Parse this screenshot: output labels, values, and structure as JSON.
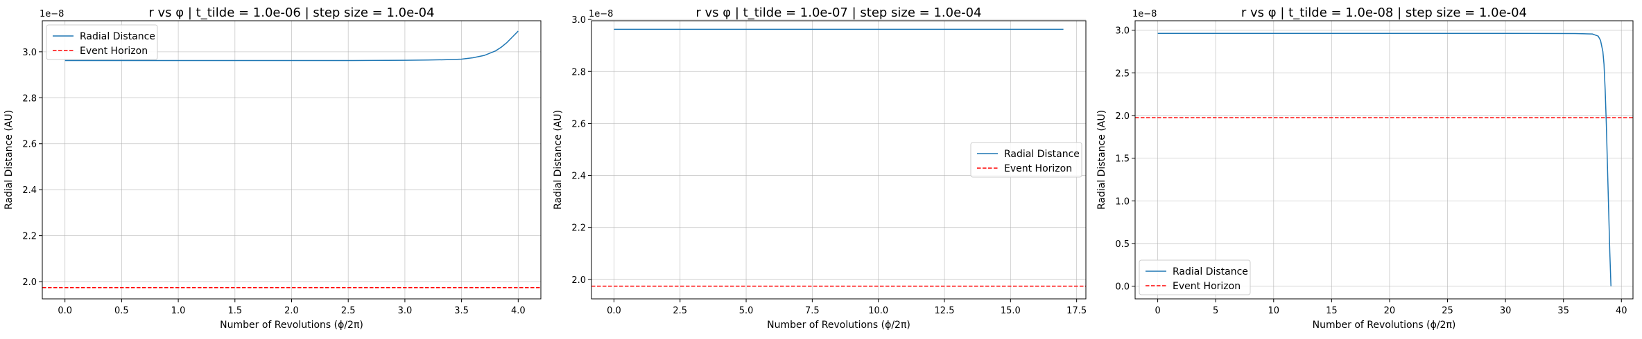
{
  "chart_data": [
    {
      "type": "line",
      "title": "r vs φ | t_tilde = 1.0e-06 | step size = 1.0e-04",
      "xlabel": "Number of Revolutions (ϕ/2π)",
      "ylabel": "Radial Distance (AU)",
      "y_offset_label": "1e−8",
      "xlim": [
        -0.2,
        4.2
      ],
      "ylim": [
        1.925,
        3.135
      ],
      "x_ticks": [
        0.0,
        0.5,
        1.0,
        1.5,
        2.0,
        2.5,
        3.0,
        3.5,
        4.0
      ],
      "x_tick_labels": [
        "0.0",
        "0.5",
        "1.0",
        "1.5",
        "2.0",
        "2.5",
        "3.0",
        "3.5",
        "4.0"
      ],
      "y_ticks": [
        2.0,
        2.2,
        2.4,
        2.6,
        2.8,
        3.0
      ],
      "y_tick_labels": [
        "2.0",
        "2.2",
        "2.4",
        "2.6",
        "2.8",
        "3.0"
      ],
      "grid": true,
      "legend_position": "upper-left",
      "series": [
        {
          "name": "Radial Distance",
          "color": "#1f77b4",
          "style": "solid",
          "x": [
            0.0,
            0.5,
            1.0,
            1.5,
            2.0,
            2.5,
            3.0,
            3.2,
            3.4,
            3.5,
            3.6,
            3.7,
            3.8,
            3.85,
            3.9,
            3.95,
            4.0
          ],
          "y": [
            2.962,
            2.962,
            2.962,
            2.962,
            2.962,
            2.962,
            2.963,
            2.964,
            2.966,
            2.968,
            2.974,
            2.984,
            3.004,
            3.02,
            3.04,
            3.065,
            3.09
          ]
        },
        {
          "name": "Event Horizon",
          "color": "#ff0000",
          "style": "dashed",
          "x": [
            -0.2,
            4.2
          ],
          "y": [
            1.974,
            1.974
          ]
        }
      ]
    },
    {
      "type": "line",
      "title": "r vs φ | t_tilde = 1.0e-07 | step size = 1.0e-04",
      "xlabel": "Number of Revolutions (ϕ/2π)",
      "ylabel": "Radial Distance (AU)",
      "y_offset_label": "1e−8",
      "xlim": [
        -0.85,
        17.85
      ],
      "ylim": [
        1.925,
        2.995
      ],
      "x_ticks": [
        0.0,
        2.5,
        5.0,
        7.5,
        10.0,
        12.5,
        15.0,
        17.5
      ],
      "x_tick_labels": [
        "0.0",
        "2.5",
        "5.0",
        "7.5",
        "10.0",
        "12.5",
        "15.0",
        "17.5"
      ],
      "y_ticks": [
        2.0,
        2.2,
        2.4,
        2.6,
        2.8,
        3.0
      ],
      "y_tick_labels": [
        "2.0",
        "2.2",
        "2.4",
        "2.6",
        "2.8",
        "3.0"
      ],
      "grid": true,
      "legend_position": "center-right",
      "series": [
        {
          "name": "Radial Distance",
          "color": "#1f77b4",
          "style": "solid",
          "x": [
            0.0,
            17.0
          ],
          "y": [
            2.962,
            2.962
          ]
        },
        {
          "name": "Event Horizon",
          "color": "#ff0000",
          "style": "dashed",
          "x": [
            -0.85,
            17.85
          ],
          "y": [
            1.974,
            1.974
          ]
        }
      ]
    },
    {
      "type": "line",
      "title": "r vs φ | t_tilde = 1.0e-08 | step size = 1.0e-04",
      "xlabel": "Number of Revolutions (ϕ/2π)",
      "ylabel": "Radial Distance (AU)",
      "y_offset_label": "1e−8",
      "xlim": [
        -1.95,
        41.0
      ],
      "ylim": [
        -0.148,
        3.11
      ],
      "x_ticks": [
        0,
        5,
        10,
        15,
        20,
        25,
        30,
        35,
        40
      ],
      "x_tick_labels": [
        "0",
        "5",
        "10",
        "15",
        "20",
        "25",
        "30",
        "35",
        "40"
      ],
      "y_ticks": [
        0.0,
        0.5,
        1.0,
        1.5,
        2.0,
        2.5,
        3.0
      ],
      "y_tick_labels": [
        "0.0",
        "0.5",
        "1.0",
        "1.5",
        "2.0",
        "2.5",
        "3.0"
      ],
      "grid": true,
      "legend_position": "lower-left",
      "series": [
        {
          "name": "Radial Distance",
          "color": "#1f77b4",
          "style": "solid",
          "x": [
            0.0,
            10.0,
            20.0,
            30.0,
            36.0,
            37.5,
            38.0,
            38.2,
            38.4,
            38.5,
            38.6,
            38.7,
            38.8,
            38.9,
            39.0,
            39.1
          ],
          "y": [
            2.962,
            2.962,
            2.962,
            2.962,
            2.96,
            2.955,
            2.93,
            2.88,
            2.75,
            2.6,
            2.3,
            1.9,
            1.4,
            0.9,
            0.4,
            0.0
          ]
        },
        {
          "name": "Event Horizon",
          "color": "#ff0000",
          "style": "dashed",
          "x": [
            -1.95,
            41.0
          ],
          "y": [
            1.974,
            1.974
          ]
        }
      ]
    }
  ]
}
